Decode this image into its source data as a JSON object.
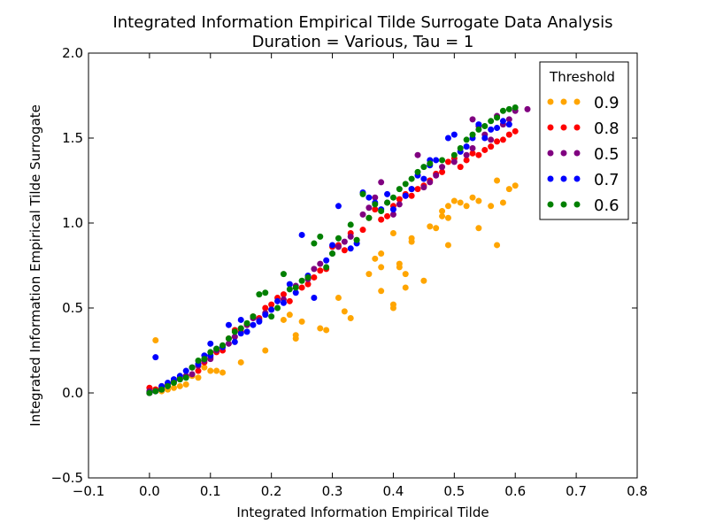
{
  "chart_data": {
    "type": "scatter",
    "title": "Integrated Information Empirical Tilde Surrogate Data Analysis",
    "subtitle": "Duration = Various, Tau = 1",
    "xlabel": "Integrated Information Empirical Tilde",
    "ylabel": "Integrated Information Empirical Tilde Surrogate",
    "xlim": [
      -0.1,
      0.8
    ],
    "ylim": [
      -0.5,
      2.0
    ],
    "xticks": [
      "−0.1",
      "0.0",
      "0.1",
      "0.2",
      "0.3",
      "0.4",
      "0.5",
      "0.6",
      "0.7",
      "0.8"
    ],
    "xtick_values": [
      -0.1,
      0.0,
      0.1,
      0.2,
      0.3,
      0.4,
      0.5,
      0.6,
      0.7,
      0.8
    ],
    "yticks": [
      "−0.5",
      "0.0",
      "0.5",
      "1.0",
      "1.5",
      "2.0"
    ],
    "ytick_values": [
      -0.5,
      0.0,
      0.5,
      1.0,
      1.5,
      2.0
    ],
    "grid": false,
    "legend_title": "Threshold",
    "legend_position": "top-right",
    "series": [
      {
        "name": "0.9",
        "color": "#ffa500",
        "points": [
          [
            0.0,
            0.0
          ],
          [
            0.01,
            0.02
          ],
          [
            0.01,
            0.31
          ],
          [
            0.02,
            0.01
          ],
          [
            0.03,
            0.02
          ],
          [
            0.04,
            0.03
          ],
          [
            0.05,
            0.04
          ],
          [
            0.06,
            0.05
          ],
          [
            0.07,
            0.1
          ],
          [
            0.08,
            0.09
          ],
          [
            0.09,
            0.15
          ],
          [
            0.1,
            0.13
          ],
          [
            0.11,
            0.13
          ],
          [
            0.12,
            0.12
          ],
          [
            0.15,
            0.18
          ],
          [
            0.19,
            0.25
          ],
          [
            0.22,
            0.43
          ],
          [
            0.23,
            0.46
          ],
          [
            0.24,
            0.34
          ],
          [
            0.24,
            0.32
          ],
          [
            0.25,
            0.42
          ],
          [
            0.28,
            0.38
          ],
          [
            0.29,
            0.37
          ],
          [
            0.31,
            0.56
          ],
          [
            0.32,
            0.48
          ],
          [
            0.33,
            0.44
          ],
          [
            0.36,
            0.7
          ],
          [
            0.37,
            0.79
          ],
          [
            0.38,
            0.74
          ],
          [
            0.38,
            0.6
          ],
          [
            0.38,
            0.82
          ],
          [
            0.4,
            0.52
          ],
          [
            0.4,
            0.5
          ],
          [
            0.4,
            0.94
          ],
          [
            0.41,
            0.76
          ],
          [
            0.41,
            0.74
          ],
          [
            0.42,
            0.62
          ],
          [
            0.42,
            0.7
          ],
          [
            0.43,
            0.89
          ],
          [
            0.43,
            0.91
          ],
          [
            0.45,
            0.66
          ],
          [
            0.46,
            0.98
          ],
          [
            0.47,
            0.97
          ],
          [
            0.48,
            1.07
          ],
          [
            0.48,
            1.04
          ],
          [
            0.49,
            1.03
          ],
          [
            0.49,
            1.1
          ],
          [
            0.49,
            0.87
          ],
          [
            0.5,
            1.13
          ],
          [
            0.51,
            1.12
          ],
          [
            0.52,
            1.1
          ],
          [
            0.53,
            1.15
          ],
          [
            0.54,
            1.13
          ],
          [
            0.54,
            0.97
          ],
          [
            0.56,
            1.1
          ],
          [
            0.57,
            1.25
          ],
          [
            0.57,
            0.87
          ],
          [
            0.58,
            1.12
          ],
          [
            0.59,
            1.2
          ],
          [
            0.6,
            1.22
          ]
        ]
      },
      {
        "name": "0.8",
        "color": "#ff0000",
        "points": [
          [
            0.0,
            0.0
          ],
          [
            0.0,
            0.03
          ],
          [
            0.01,
            0.02
          ],
          [
            0.02,
            0.02
          ],
          [
            0.02,
            0.04
          ],
          [
            0.03,
            0.05
          ],
          [
            0.04,
            0.07
          ],
          [
            0.05,
            0.09
          ],
          [
            0.06,
            0.1
          ],
          [
            0.07,
            0.15
          ],
          [
            0.08,
            0.13
          ],
          [
            0.09,
            0.18
          ],
          [
            0.1,
            0.21
          ],
          [
            0.11,
            0.24
          ],
          [
            0.12,
            0.25
          ],
          [
            0.13,
            0.32
          ],
          [
            0.14,
            0.37
          ],
          [
            0.15,
            0.36
          ],
          [
            0.16,
            0.4
          ],
          [
            0.17,
            0.45
          ],
          [
            0.18,
            0.44
          ],
          [
            0.19,
            0.5
          ],
          [
            0.2,
            0.52
          ],
          [
            0.21,
            0.56
          ],
          [
            0.22,
            0.58
          ],
          [
            0.23,
            0.54
          ],
          [
            0.24,
            0.62
          ],
          [
            0.25,
            0.62
          ],
          [
            0.26,
            0.64
          ],
          [
            0.27,
            0.68
          ],
          [
            0.28,
            0.72
          ],
          [
            0.29,
            0.73
          ],
          [
            0.3,
            0.86
          ],
          [
            0.31,
            0.87
          ],
          [
            0.32,
            0.84
          ],
          [
            0.33,
            0.94
          ],
          [
            0.34,
            0.9
          ],
          [
            0.35,
            0.96
          ],
          [
            0.36,
            1.03
          ],
          [
            0.37,
            1.08
          ],
          [
            0.38,
            1.02
          ],
          [
            0.39,
            1.04
          ],
          [
            0.4,
            1.1
          ],
          [
            0.41,
            1.14
          ],
          [
            0.42,
            1.17
          ],
          [
            0.43,
            1.16
          ],
          [
            0.44,
            1.2
          ],
          [
            0.45,
            1.22
          ],
          [
            0.46,
            1.25
          ],
          [
            0.47,
            1.29
          ],
          [
            0.48,
            1.3
          ],
          [
            0.49,
            1.36
          ],
          [
            0.5,
            1.38
          ],
          [
            0.51,
            1.33
          ],
          [
            0.52,
            1.37
          ],
          [
            0.53,
            1.41
          ],
          [
            0.54,
            1.4
          ],
          [
            0.55,
            1.43
          ],
          [
            0.56,
            1.45
          ],
          [
            0.57,
            1.48
          ],
          [
            0.58,
            1.49
          ],
          [
            0.59,
            1.52
          ],
          [
            0.6,
            1.54
          ]
        ]
      },
      {
        "name": "0.5",
        "color": "#800080",
        "points": [
          [
            0.0,
            0.01
          ],
          [
            0.01,
            0.01
          ],
          [
            0.02,
            0.03
          ],
          [
            0.03,
            0.04
          ],
          [
            0.04,
            0.07
          ],
          [
            0.05,
            0.08
          ],
          [
            0.06,
            0.1
          ],
          [
            0.07,
            0.11
          ],
          [
            0.08,
            0.16
          ],
          [
            0.09,
            0.19
          ],
          [
            0.1,
            0.2
          ],
          [
            0.11,
            0.25
          ],
          [
            0.12,
            0.27
          ],
          [
            0.13,
            0.29
          ],
          [
            0.14,
            0.33
          ],
          [
            0.15,
            0.38
          ],
          [
            0.16,
            0.4
          ],
          [
            0.17,
            0.44
          ],
          [
            0.18,
            0.43
          ],
          [
            0.19,
            0.47
          ],
          [
            0.2,
            0.49
          ],
          [
            0.22,
            0.55
          ],
          [
            0.24,
            0.63
          ],
          [
            0.26,
            0.67
          ],
          [
            0.27,
            0.73
          ],
          [
            0.28,
            0.76
          ],
          [
            0.3,
            0.82
          ],
          [
            0.31,
            0.86
          ],
          [
            0.32,
            0.89
          ],
          [
            0.33,
            0.92
          ],
          [
            0.35,
            1.05
          ],
          [
            0.36,
            1.09
          ],
          [
            0.37,
            1.15
          ],
          [
            0.38,
            1.24
          ],
          [
            0.39,
            1.12
          ],
          [
            0.4,
            1.05
          ],
          [
            0.41,
            1.11
          ],
          [
            0.42,
            1.16
          ],
          [
            0.43,
            1.2
          ],
          [
            0.44,
            1.4
          ],
          [
            0.45,
            1.21
          ],
          [
            0.46,
            1.24
          ],
          [
            0.47,
            1.28
          ],
          [
            0.48,
            1.33
          ],
          [
            0.5,
            1.36
          ],
          [
            0.52,
            1.4
          ],
          [
            0.53,
            1.44
          ],
          [
            0.53,
            1.61
          ],
          [
            0.54,
            1.57
          ],
          [
            0.55,
            1.52
          ],
          [
            0.56,
            1.49
          ],
          [
            0.57,
            1.63
          ],
          [
            0.58,
            1.58
          ],
          [
            0.59,
            1.61
          ],
          [
            0.6,
            1.66
          ],
          [
            0.62,
            1.67
          ]
        ]
      },
      {
        "name": "0.7",
        "color": "#0000ff",
        "points": [
          [
            0.0,
            0.0
          ],
          [
            0.01,
            0.21
          ],
          [
            0.01,
            0.01
          ],
          [
            0.02,
            0.02
          ],
          [
            0.02,
            0.04
          ],
          [
            0.03,
            0.06
          ],
          [
            0.04,
            0.08
          ],
          [
            0.05,
            0.1
          ],
          [
            0.06,
            0.13
          ],
          [
            0.07,
            0.15
          ],
          [
            0.08,
            0.17
          ],
          [
            0.09,
            0.22
          ],
          [
            0.1,
            0.29
          ],
          [
            0.1,
            0.22
          ],
          [
            0.11,
            0.26
          ],
          [
            0.12,
            0.27
          ],
          [
            0.13,
            0.4
          ],
          [
            0.14,
            0.3
          ],
          [
            0.15,
            0.35
          ],
          [
            0.15,
            0.43
          ],
          [
            0.16,
            0.36
          ],
          [
            0.17,
            0.4
          ],
          [
            0.18,
            0.42
          ],
          [
            0.19,
            0.46
          ],
          [
            0.2,
            0.49
          ],
          [
            0.21,
            0.54
          ],
          [
            0.22,
            0.53
          ],
          [
            0.23,
            0.64
          ],
          [
            0.24,
            0.59
          ],
          [
            0.25,
            0.93
          ],
          [
            0.26,
            0.69
          ],
          [
            0.27,
            0.56
          ],
          [
            0.29,
            0.78
          ],
          [
            0.3,
            0.87
          ],
          [
            0.31,
            1.1
          ],
          [
            0.33,
            0.85
          ],
          [
            0.34,
            0.88
          ],
          [
            0.35,
            1.18
          ],
          [
            0.36,
            1.15
          ],
          [
            0.37,
            1.12
          ],
          [
            0.38,
            1.08
          ],
          [
            0.39,
            1.17
          ],
          [
            0.4,
            1.08
          ],
          [
            0.42,
            1.16
          ],
          [
            0.43,
            1.2
          ],
          [
            0.44,
            1.28
          ],
          [
            0.45,
            1.26
          ],
          [
            0.46,
            1.37
          ],
          [
            0.46,
            1.34
          ],
          [
            0.47,
            1.37
          ],
          [
            0.49,
            1.5
          ],
          [
            0.5,
            1.52
          ],
          [
            0.51,
            1.42
          ],
          [
            0.52,
            1.45
          ],
          [
            0.53,
            1.5
          ],
          [
            0.54,
            1.58
          ],
          [
            0.55,
            1.5
          ],
          [
            0.56,
            1.55
          ],
          [
            0.57,
            1.56
          ],
          [
            0.58,
            1.6
          ],
          [
            0.59,
            1.58
          ]
        ]
      },
      {
        "name": "0.6",
        "color": "#008000",
        "points": [
          [
            0.0,
            0.0
          ],
          [
            0.01,
            0.01
          ],
          [
            0.02,
            0.02
          ],
          [
            0.03,
            0.04
          ],
          [
            0.04,
            0.06
          ],
          [
            0.05,
            0.08
          ],
          [
            0.06,
            0.09
          ],
          [
            0.07,
            0.15
          ],
          [
            0.08,
            0.19
          ],
          [
            0.09,
            0.2
          ],
          [
            0.1,
            0.24
          ],
          [
            0.11,
            0.26
          ],
          [
            0.12,
            0.28
          ],
          [
            0.13,
            0.32
          ],
          [
            0.14,
            0.36
          ],
          [
            0.15,
            0.38
          ],
          [
            0.16,
            0.41
          ],
          [
            0.17,
            0.45
          ],
          [
            0.18,
            0.58
          ],
          [
            0.19,
            0.59
          ],
          [
            0.2,
            0.45
          ],
          [
            0.21,
            0.5
          ],
          [
            0.22,
            0.7
          ],
          [
            0.23,
            0.61
          ],
          [
            0.24,
            0.62
          ],
          [
            0.25,
            0.66
          ],
          [
            0.26,
            0.68
          ],
          [
            0.27,
            0.88
          ],
          [
            0.28,
            0.92
          ],
          [
            0.29,
            0.74
          ],
          [
            0.3,
            0.82
          ],
          [
            0.31,
            0.91
          ],
          [
            0.33,
            0.99
          ],
          [
            0.34,
            0.9
          ],
          [
            0.35,
            1.17
          ],
          [
            0.36,
            1.03
          ],
          [
            0.37,
            1.11
          ],
          [
            0.38,
            1.07
          ],
          [
            0.39,
            1.12
          ],
          [
            0.4,
            1.15
          ],
          [
            0.41,
            1.2
          ],
          [
            0.42,
            1.23
          ],
          [
            0.43,
            1.26
          ],
          [
            0.44,
            1.3
          ],
          [
            0.45,
            1.33
          ],
          [
            0.46,
            1.35
          ],
          [
            0.48,
            1.37
          ],
          [
            0.5,
            1.4
          ],
          [
            0.51,
            1.44
          ],
          [
            0.52,
            1.49
          ],
          [
            0.53,
            1.52
          ],
          [
            0.54,
            1.55
          ],
          [
            0.55,
            1.57
          ],
          [
            0.56,
            1.6
          ],
          [
            0.57,
            1.62
          ],
          [
            0.58,
            1.66
          ],
          [
            0.59,
            1.67
          ],
          [
            0.6,
            1.68
          ]
        ]
      }
    ]
  }
}
